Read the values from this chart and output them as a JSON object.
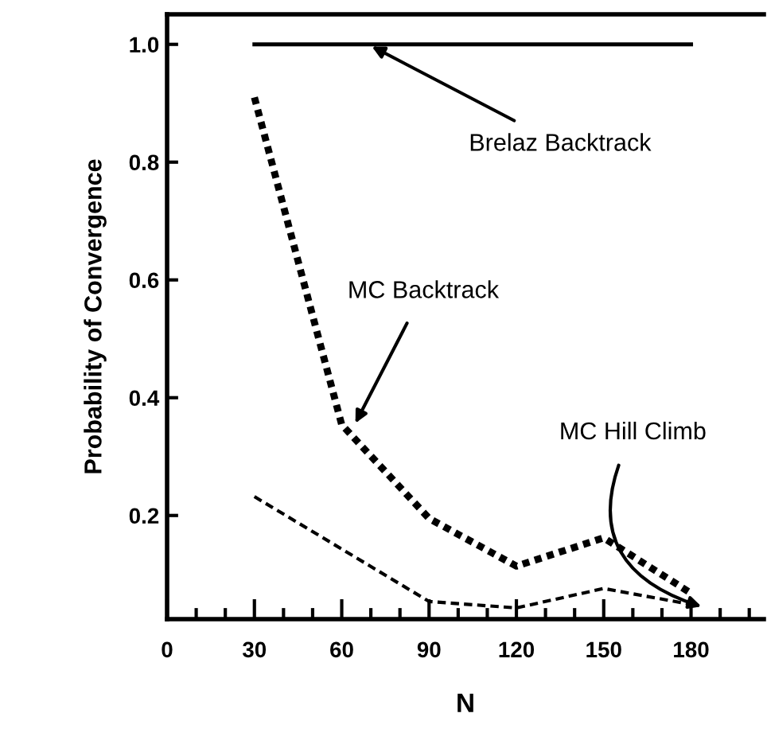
{
  "chart_data": {
    "type": "line",
    "xlabel": "N",
    "ylabel": "Probability of Convergence",
    "xlim": [
      0,
      205
    ],
    "ylim": [
      0.024,
      1.051
    ],
    "xticks": [
      0,
      30,
      60,
      90,
      120,
      150,
      180
    ],
    "yticks": [
      0.2,
      0.4,
      0.6,
      0.8,
      {
        "value": 1.0,
        "label": "1.0"
      }
    ],
    "grid": false,
    "legend": false,
    "series": [
      {
        "name": "Brelaz Backtrack",
        "color": "#000000",
        "line_style": "solid",
        "x": [
          30,
          180
        ],
        "values": [
          1.0,
          1.0
        ]
      },
      {
        "name": "MC Backtrack",
        "color": "#000000",
        "line_style": "dotted",
        "x": [
          30,
          60,
          90,
          120,
          150,
          180
        ],
        "values": [
          0.91,
          0.354,
          0.195,
          0.114,
          0.162,
          0.068
        ]
      },
      {
        "name": "MC Hill Climb",
        "color": "#000000",
        "line_style": "dashed",
        "x": [
          30,
          90,
          120,
          150,
          180
        ],
        "values": [
          0.232,
          0.054,
          0.043,
          0.076,
          0.049
        ]
      }
    ]
  }
}
